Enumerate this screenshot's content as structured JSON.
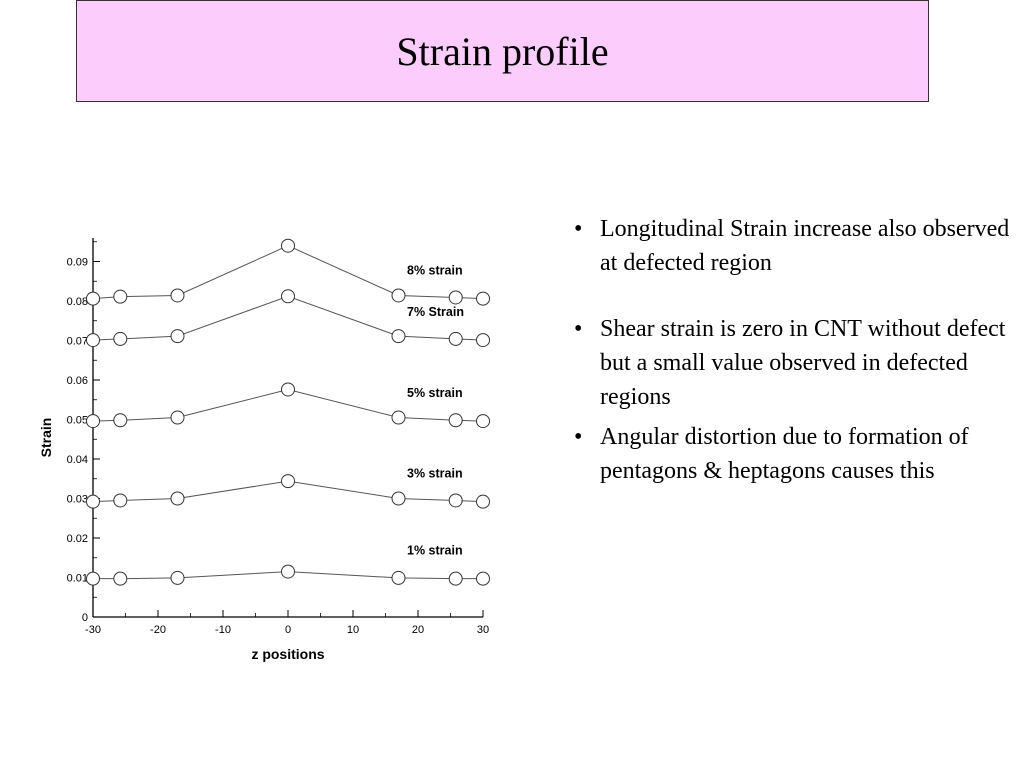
{
  "slide": {
    "title": "Strain profile",
    "bullet_glyph": "•",
    "bullets": [
      "Longitudinal Strain increase also observed at defected region",
      "Shear strain is zero in CNT without defect but a small value observed in defected regions",
      "Angular distortion due to formation of pentagons & heptagons causes this"
    ],
    "title_bg_color": "#fccdfc"
  },
  "chart_data": {
    "type": "line",
    "title": "",
    "xlabel": "z positions",
    "ylabel": "Strain",
    "xlim": [
      -30,
      30
    ],
    "ylim": [
      0,
      0.095
    ],
    "xticks": [
      -30,
      -20,
      -10,
      0,
      10,
      20,
      30
    ],
    "xtick_labels": [
      "-30",
      "-20",
      "-10",
      "0",
      "10",
      "20",
      "30"
    ],
    "yticks": [
      0,
      0.01,
      0.02,
      0.03,
      0.04,
      0.05,
      0.06,
      0.07,
      0.08,
      0.09
    ],
    "ytick_labels": [
      "0",
      "0.01",
      "0.02",
      "0.03",
      "0.04",
      "0.05",
      "0.06",
      "0.07",
      "0.08",
      "0.09"
    ],
    "grid": false,
    "marker": "open-circle",
    "x": [
      -30,
      -25.8,
      -17,
      0,
      17,
      25.8,
      30
    ],
    "series": [
      {
        "name": "1% strain",
        "values": [
          0.0097,
          0.0097,
          0.0099,
          0.0115,
          0.0099,
          0.0097,
          0.0097
        ]
      },
      {
        "name": "3% strain",
        "values": [
          0.0292,
          0.0295,
          0.03,
          0.0344,
          0.03,
          0.0295,
          0.0292
        ]
      },
      {
        "name": "5% strain",
        "values": [
          0.0496,
          0.0498,
          0.0505,
          0.0576,
          0.0505,
          0.0498,
          0.0496
        ]
      },
      {
        "name": "7% Strain",
        "values": [
          0.0701,
          0.0704,
          0.0711,
          0.0812,
          0.0711,
          0.0704,
          0.0701
        ]
      },
      {
        "name": "8% strain",
        "values": [
          0.0806,
          0.0811,
          0.0814,
          0.094,
          0.0814,
          0.0809,
          0.0806
        ]
      }
    ]
  }
}
